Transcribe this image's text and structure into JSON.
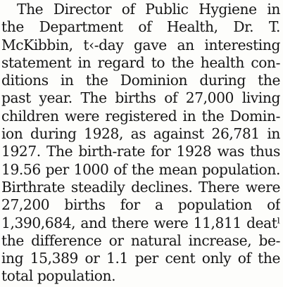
{
  "article": {
    "lines": [
      "The Director of Public Hygiene in",
      "the Department of Health, Dr. T.",
      "McKibbin, t‹-day gave an interesting",
      "statement in regard to the health con-",
      "ditions in the Dominion during the",
      "past year. The births of 27,000 living",
      "children were registered in the Domin-",
      "ion during 1928, as against 26,781 in",
      "1927. The birth-rate for 1928 was thus",
      "19.56 per 1000 of the mean population.",
      "Birthrate steadily declines. There were",
      "27,200 births for a population of",
      "1,390,684, and there were 11,811 deatˡ",
      "the difference or natural increase, be-",
      "ing 15,389 or 1.1 per cent only of the",
      "total population."
    ]
  }
}
